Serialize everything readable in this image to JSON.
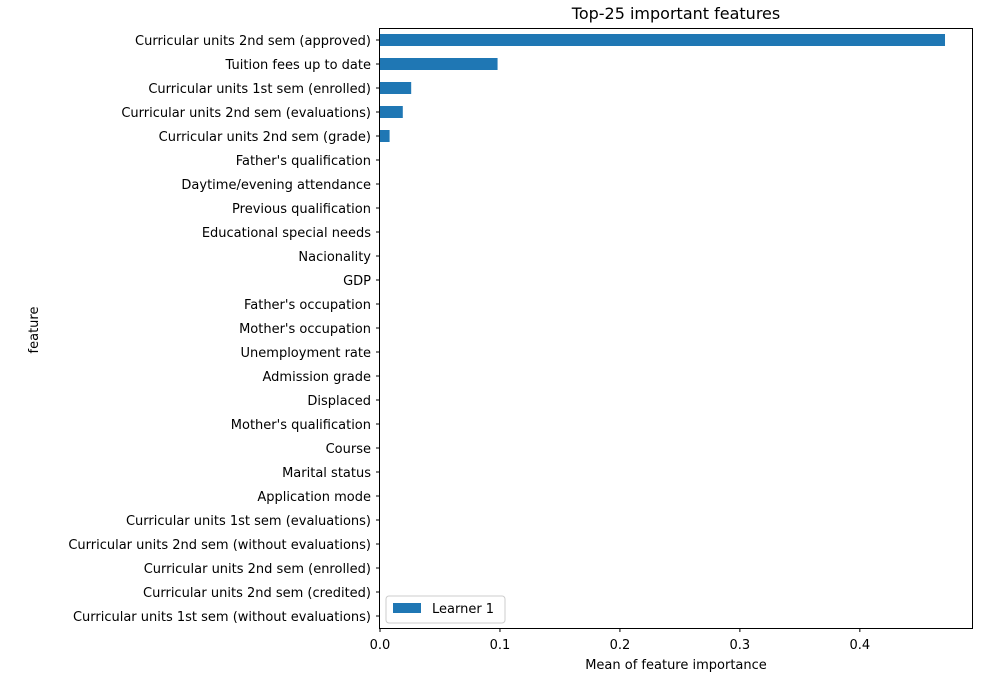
{
  "chart_data": {
    "type": "bar",
    "orientation": "horizontal",
    "title": "Top-25 important features",
    "xlabel": "Mean of feature importance",
    "ylabel": "feature",
    "xlim": [
      0,
      0.4935
    ],
    "x_ticks": [
      0.0,
      0.1,
      0.2,
      0.3,
      0.4
    ],
    "x_tick_labels": [
      "0.0",
      "0.1",
      "0.2",
      "0.3",
      "0.4"
    ],
    "grid": false,
    "legend_position": "lower-left",
    "categories": [
      "Curricular units 2nd sem (approved)",
      "Tuition fees up to date",
      "Curricular units 1st sem (enrolled)",
      "Curricular units 2nd sem (evaluations)",
      "Curricular units 2nd sem (grade)",
      "Father's qualification",
      "Daytime/evening attendance",
      "Previous qualification",
      "Educational special needs",
      "Nacionality",
      "GDP",
      "Father's occupation",
      "Mother's occupation",
      "Unemployment rate",
      "Admission grade",
      "Displaced",
      "Mother's qualification",
      "Course",
      "Marital status",
      "Application mode",
      "Curricular units 1st sem (evaluations)",
      "Curricular units 2nd sem (without evaluations)",
      "Curricular units 2nd sem (enrolled)",
      "Curricular units 2nd sem (credited)",
      "Curricular units 1st sem (without evaluations)"
    ],
    "series": [
      {
        "name": "Learner 1",
        "color": "#1f77b4",
        "values": [
          0.471,
          0.098,
          0.026,
          0.019,
          0.008,
          0,
          0,
          0,
          0,
          0,
          0,
          0,
          0,
          0,
          0,
          0,
          0,
          0,
          0,
          0,
          0,
          0,
          0,
          0,
          0
        ]
      }
    ]
  }
}
